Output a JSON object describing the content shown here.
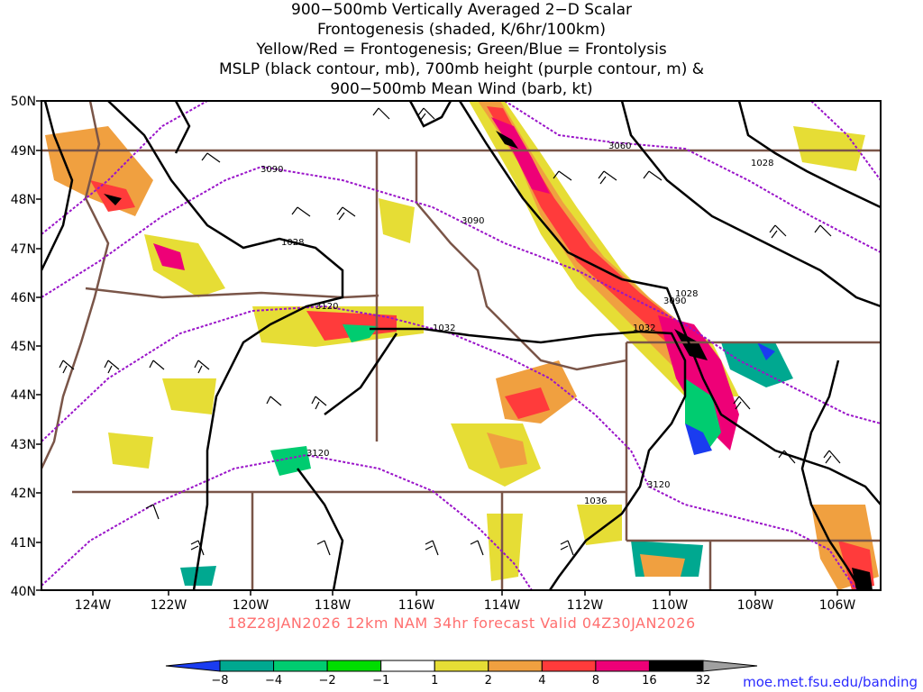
{
  "title_lines": [
    "900−500mb Vertically Averaged 2−D Scalar",
    "Frontogenesis (shaded, K/6hr/100km)",
    "Yellow/Red = Frontogenesis;  Green/Blue = Frontolysis",
    "MSLP (black contour, mb), 700mb height (purple contour, m) &",
    "900−500mb Mean Wind (barb, kt)"
  ],
  "valid_line": "18Z28JAN2026 12km NAM 34hr forecast Valid 04Z30JAN2026",
  "credit": "moe.met.fsu.edu/banding",
  "lat_labels": [
    "50N",
    "49N",
    "48N",
    "47N",
    "46N",
    "45N",
    "44N",
    "43N",
    "42N",
    "41N",
    "40N"
  ],
  "lon_labels": [
    "124W",
    "122W",
    "120W",
    "118W",
    "116W",
    "114W",
    "112W",
    "110W",
    "108W",
    "106W"
  ],
  "mslp_labels": [
    "1028",
    "1028",
    "1028",
    "1032",
    "1032",
    "1036"
  ],
  "height_labels": [
    "3060",
    "3090",
    "3090",
    "3090",
    "3120",
    "3120",
    "3120"
  ],
  "colorbar": {
    "ticks": [
      "−8",
      "−4",
      "−2",
      "−1",
      "1",
      "2",
      "4",
      "8",
      "16",
      "32"
    ],
    "colors": [
      "#1a3cf0",
      "#00a890",
      "#00cc70",
      "#00dd00",
      "#ffffff",
      "#e6dd35",
      "#f0a040",
      "#ff3b3b",
      "#ee0077",
      "#000000",
      "#a0a0a0"
    ]
  },
  "colors": {
    "mslp": "#000000",
    "height": "#9a14c9",
    "borders": "#7a5548",
    "barb": "#000000",
    "valid_text": "#ff6f6f",
    "credit": "#2a2aff"
  }
}
